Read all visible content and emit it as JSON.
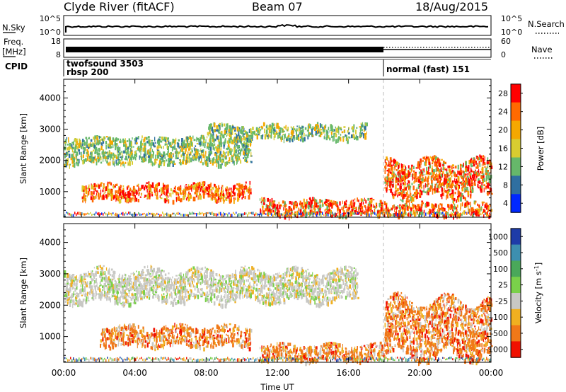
{
  "header": {
    "station": "Clyde River (fitACF)",
    "beam": "Beam 07",
    "date": "18/Aug/2015"
  },
  "strips": {
    "nsky_label": "N.Sky",
    "nsky_ticks": [
      "10^5",
      "10^0"
    ],
    "nsearch_label": "N.Search",
    "nsearch_ticks": [
      "10^5",
      "10^0"
    ],
    "freq_label_1": "Freq.",
    "freq_label_2": "[MHz]",
    "freq_ticks": [
      "18",
      "8"
    ],
    "nave_label": "Nave",
    "nave_ticks": [
      "60",
      "0"
    ],
    "cpid_label": "CPID",
    "cpid_entries": [
      {
        "time_hours": 0.0,
        "name": "twofsound",
        "code": "3503",
        "row": "top",
        "text": "twofsound 3503"
      },
      {
        "time_hours": 0.0,
        "name": "rbsp",
        "code": "200",
        "row": "bottom",
        "text": "rbsp 200"
      },
      {
        "time_hours": 18.0,
        "name": "normal (fast)",
        "code": "151",
        "row": "middle",
        "text": "normal (fast) 151"
      }
    ]
  },
  "chart_data": [
    {
      "type": "heatmap",
      "panel": "power",
      "ylabel": "Slant Range [km]",
      "ylim": [
        180,
        4600
      ],
      "yticks": [
        1000,
        2000,
        3000,
        4000
      ],
      "xlim": [
        0,
        24
      ],
      "colorbar_label": "Power [dB]",
      "colorbar_ticks": [
        "28",
        "24",
        "20",
        "16",
        "12",
        "8",
        "4"
      ],
      "colorbar_colors": [
        "#ff0000",
        "#ff6a00",
        "#f5a800",
        "#d8cc30",
        "#66b86a",
        "#2f6fa0",
        "#0028ff"
      ],
      "mode_change_time_hours": 18.0,
      "echo_regions": [
        {
          "t0": 0.0,
          "t1": 10.5,
          "r0": 2400,
          "r1": 2800,
          "level": "low-mid"
        },
        {
          "t0": 0.0,
          "t1": 10.5,
          "r0": 1900,
          "r1": 2400,
          "level": "low-mid"
        },
        {
          "t0": 1.0,
          "t1": 10.5,
          "r0": 750,
          "r1": 1300,
          "level": "mid-high"
        },
        {
          "t0": 8.0,
          "t1": 17.0,
          "r0": 2700,
          "r1": 3200,
          "level": "low-mid"
        },
        {
          "t0": 11.0,
          "t1": 18.0,
          "r0": 250,
          "r1": 800,
          "level": "high"
        },
        {
          "t0": 18.0,
          "t1": 24.0,
          "r0": 800,
          "r1": 2100,
          "level": "high"
        },
        {
          "t0": 18.0,
          "t1": 24.0,
          "r0": 250,
          "r1": 700,
          "level": "high"
        }
      ]
    },
    {
      "type": "heatmap",
      "panel": "velocity",
      "ylabel": "Slant Range [km]",
      "ylim": [
        180,
        4600
      ],
      "yticks": [
        1000,
        2000,
        3000,
        4000
      ],
      "xlim": [
        0,
        24
      ],
      "xlabel": "Time UT",
      "xticks": [
        "00:00",
        "04:00",
        "08:00",
        "12:00",
        "16:00",
        "20:00",
        "00:00"
      ],
      "colorbar_label": "Velocity [m s^-1]",
      "colorbar_ticks": [
        "1000",
        "500",
        "100",
        "25",
        "-25",
        "-100",
        "-500",
        "-1000"
      ],
      "colorbar_colors": [
        "#1e3ca8",
        "#3d8fb0",
        "#4aa85a",
        "#7ad04a",
        "#c8c8c4",
        "#f0b020",
        "#f07818",
        "#f01000"
      ],
      "mode_change_time_hours": 18.0,
      "echo_regions": [
        {
          "t0": 0.0,
          "t1": 16.5,
          "r0": 2100,
          "r1": 3200,
          "level": "near-zero"
        },
        {
          "t0": 2.0,
          "t1": 10.5,
          "r0": 700,
          "r1": 1400,
          "level": "negative"
        },
        {
          "t0": 11.0,
          "t1": 18.0,
          "r0": 250,
          "r1": 800,
          "level": "negative"
        },
        {
          "t0": 18.0,
          "t1": 24.0,
          "r0": 300,
          "r1": 2300,
          "level": "negative"
        }
      ]
    }
  ],
  "colors": {
    "axis": "#000000",
    "dashed_line": "#bbbbbb"
  }
}
